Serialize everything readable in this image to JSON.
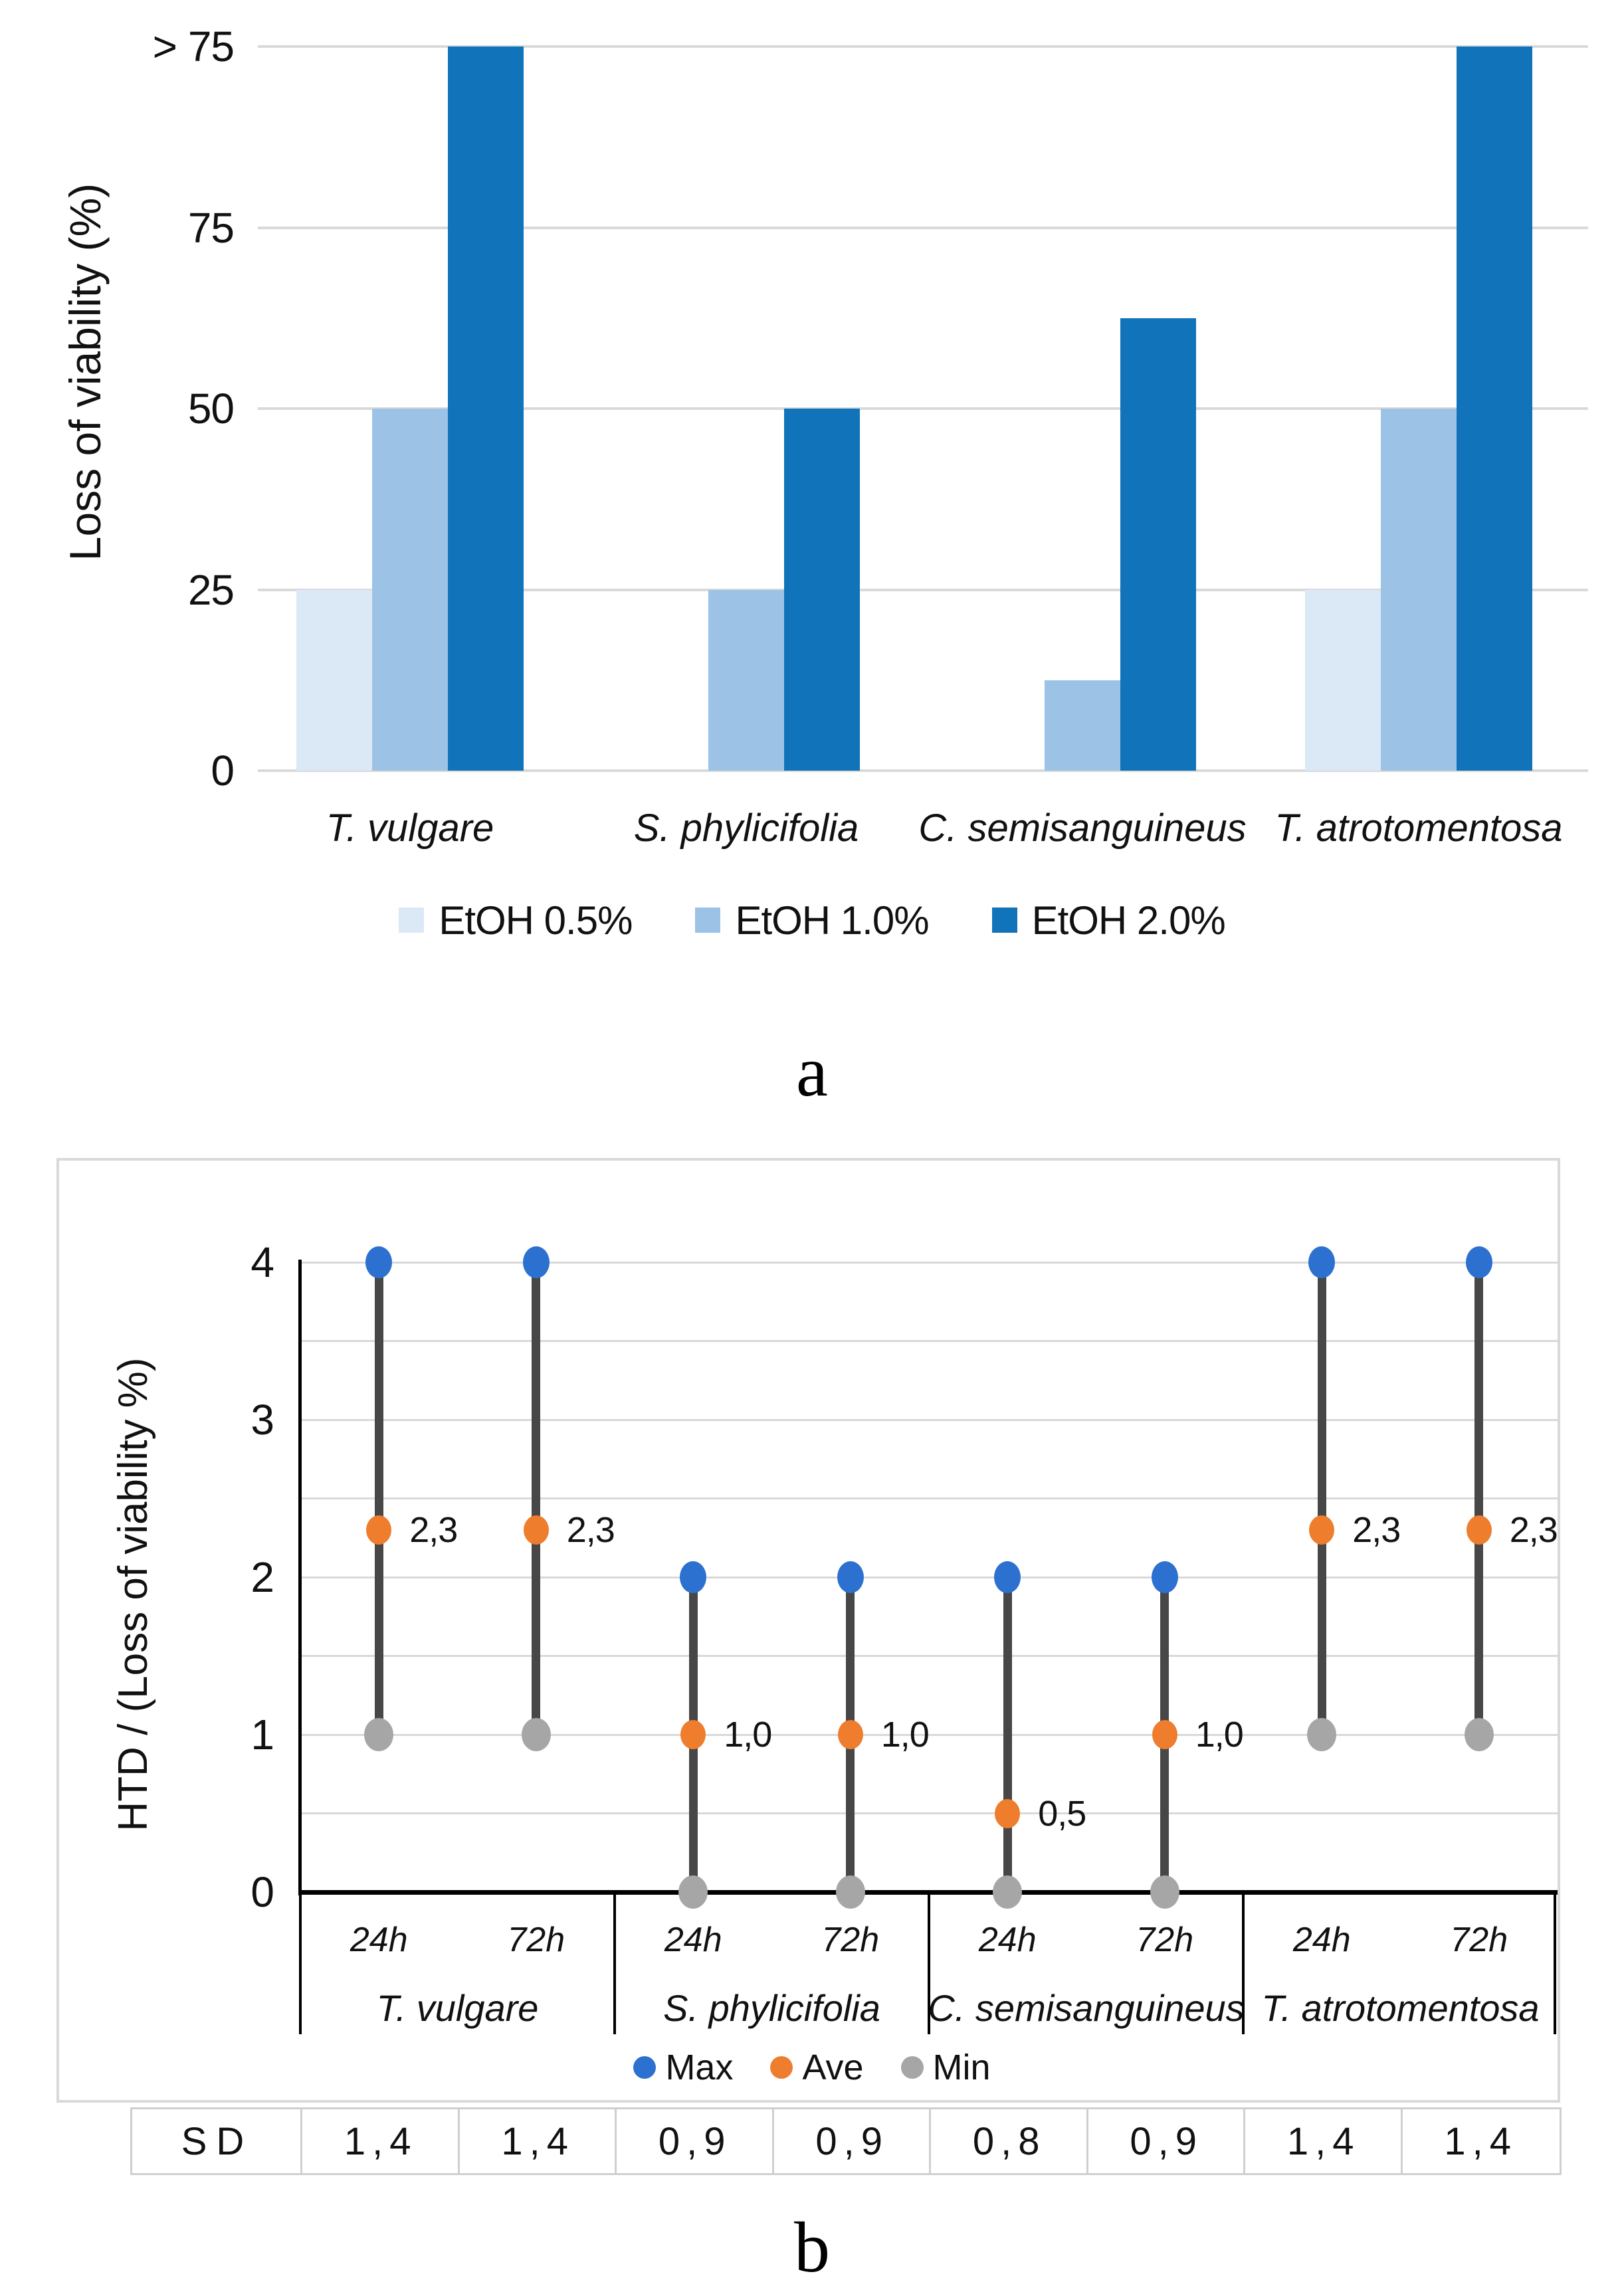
{
  "panel_labels": {
    "a": "a",
    "b": "b"
  },
  "colors": {
    "gridline": "#d9d9d9",
    "axis_black": "#000000",
    "stem_gray": "#474747",
    "bar_light_blue": "#dbe9f6",
    "bar_medium_blue": "#9cc3e6",
    "bar_dark_blue": "#1173b9",
    "marker_max_blue": "#2c70d0",
    "marker_ave_orange": "#ee7d2d",
    "marker_min_gray": "#a6a6a6",
    "sd_border": "#cfcfcf"
  },
  "chart_data": [
    {
      "id": "a",
      "type": "bar",
      "title": "",
      "xlabel": "",
      "ylabel": "Loss of viability (%)",
      "ylim": [
        0,
        100
      ],
      "grid": "horizontal",
      "legend_position": "bottom",
      "note": "Top gridline is labeled '> 75'; EtOH 2.0% bars for T. vulgare and T. atrotomentosa reach that line (value beyond 75).",
      "categories": [
        "T. vulgare",
        "S. phylicifolia",
        "C. semisanguineus",
        "T. atrotomentosa"
      ],
      "yticks": [
        {
          "value": 100,
          "label": "> 75"
        },
        {
          "value": 75,
          "label": "75"
        },
        {
          "value": 50,
          "label": "50"
        },
        {
          "value": 25,
          "label": "25"
        },
        {
          "value": 0,
          "label": "0"
        }
      ],
      "series": [
        {
          "name": "EtOH 0.5%",
          "color": "#dbe9f6",
          "values": [
            25,
            0,
            0,
            25
          ]
        },
        {
          "name": "EtOH 1.0%",
          "color": "#9cc3e6",
          "values": [
            50,
            25,
            12.5,
            50
          ]
        },
        {
          "name": "EtOH 2.0%",
          "color": "#1173b9",
          "values": [
            100,
            50,
            62.5,
            100
          ]
        }
      ]
    },
    {
      "id": "b",
      "type": "range-lollipop-high-low",
      "title": "",
      "xlabel": "",
      "ylabel": "HTD / (Loss of viability %)",
      "ylim": [
        0,
        4
      ],
      "yticks": [
        4,
        3,
        2,
        1,
        0
      ],
      "gridline_step": 0.5,
      "grid": "horizontal",
      "legend_position": "bottom",
      "groups": [
        "T. vulgare",
        "S. phylicifolia",
        "C. semisanguineus",
        "T. atrotomentosa"
      ],
      "time_points": [
        "24h",
        "72h"
      ],
      "columns": [
        {
          "group": "T. vulgare",
          "time": "24h",
          "max": 4,
          "ave": 2.3,
          "min": 1,
          "ave_label": "2,3"
        },
        {
          "group": "T. vulgare",
          "time": "72h",
          "max": 4,
          "ave": 2.3,
          "min": 1,
          "ave_label": "2,3"
        },
        {
          "group": "S. phylicifolia",
          "time": "24h",
          "max": 2,
          "ave": 1.0,
          "min": 0,
          "ave_label": "1,0"
        },
        {
          "group": "S. phylicifolia",
          "time": "72h",
          "max": 2,
          "ave": 1.0,
          "min": 0,
          "ave_label": "1,0"
        },
        {
          "group": "C. semisanguineus",
          "time": "24h",
          "max": 2,
          "ave": 0.5,
          "min": 0,
          "ave_label": "0,5"
        },
        {
          "group": "C. semisanguineus",
          "time": "72h",
          "max": 2,
          "ave": 1.0,
          "min": 0,
          "ave_label": "1,0"
        },
        {
          "group": "T. atrotomentosa",
          "time": "24h",
          "max": 4,
          "ave": 2.3,
          "min": 1,
          "ave_label": "2,3"
        },
        {
          "group": "T. atrotomentosa",
          "time": "72h",
          "max": 4,
          "ave": 2.3,
          "min": 1,
          "ave_label": "2,3"
        }
      ],
      "legend": [
        {
          "name": "Max",
          "color": "#2c70d0"
        },
        {
          "name": "Ave",
          "color": "#ee7d2d"
        },
        {
          "name": "Min",
          "color": "#a6a6a6"
        }
      ],
      "sd_row": {
        "label": "SD",
        "values": [
          "1,4",
          "1,4",
          "0,9",
          "0,9",
          "0,8",
          "0,9",
          "1,4",
          "1,4"
        ]
      }
    }
  ]
}
